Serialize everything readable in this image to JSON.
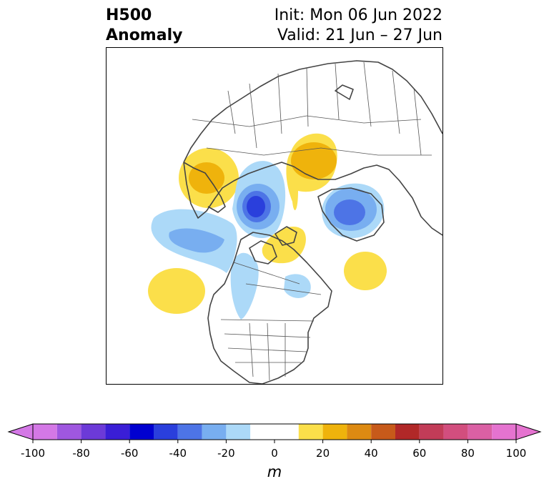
{
  "title": {
    "left_line1": "H500",
    "left_line2": "Anomaly",
    "right_line1": "Init: Mon 06 Jun 2022",
    "right_line2": "Valid: 21 Jun – 27 Jun"
  },
  "colorbar": {
    "unit": "m",
    "ticks": [
      "-100",
      "-80",
      "-60",
      "-40",
      "-20",
      "0",
      "20",
      "40",
      "60",
      "80",
      "100"
    ],
    "levels": [
      -100,
      -90,
      -80,
      -70,
      -60,
      -50,
      -40,
      -30,
      -20,
      -10,
      10,
      20,
      30,
      40,
      50,
      60,
      70,
      80,
      90,
      100
    ],
    "colors": [
      "#d478e6",
      "#9f57e0",
      "#6c3ad8",
      "#3a1ed6",
      "#0000d0",
      "#2a3fdc",
      "#4d74e6",
      "#78aef0",
      "#acd9f8",
      "#ffffff",
      "#fbdf4a",
      "#efb30c",
      "#dd8a12",
      "#c75a1a",
      "#b12828",
      "#c23c58",
      "#d24e7e",
      "#da60a4",
      "#e573d0"
    ],
    "under_color": "#d478e6",
    "over_color": "#e573d0"
  },
  "map": {
    "projection": "north polar stereographic",
    "field": "500 hPa geopotential height anomaly",
    "features": [
      {
        "name": "positive anomaly over northern Scandinavia",
        "value_m": 25
      },
      {
        "name": "positive anomaly over eastern Siberia",
        "value_m": 20
      },
      {
        "name": "negative anomaly over Kara Sea",
        "value_m": -50
      },
      {
        "name": "negative anomaly over Greenland / Baffin Bay",
        "value_m": -45
      },
      {
        "name": "positive anomaly over Canadian Arctic Archipelago",
        "value_m": 20
      },
      {
        "name": "positive anomaly over North Pacific",
        "value_m": 15
      },
      {
        "name": "positive anomaly over North Atlantic",
        "value_m": 15
      },
      {
        "name": "negative anomaly over central Canada",
        "value_m": -15
      }
    ]
  }
}
